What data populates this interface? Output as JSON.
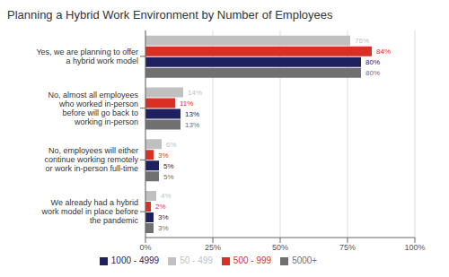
{
  "chart_data": {
    "type": "bar",
    "orientation": "horizontal",
    "title": "Planning a Hybrid Work Environment by Number of Employees",
    "categories": [
      "Yes, we are planning to offer\na hybrid work model",
      "No, almost all employees\nwho worked in-person\nbefore will go back to\nworking in-person",
      "No, employees will either\ncontinue working remotely\nor work in-person full-time",
      "We already had a hybrid\nwork model in place before\nthe pandemic"
    ],
    "series": [
      {
        "name": "50 - 499",
        "color": "#c0c0c0",
        "values": [
          76,
          14,
          6,
          4
        ],
        "value_labels": [
          "76%",
          "14%",
          "6%",
          "4%"
        ]
      },
      {
        "name": "500 - 999",
        "color": "#d93025",
        "values": [
          84,
          11,
          3,
          2
        ],
        "value_labels": [
          "84%",
          "11%",
          "3%",
          "2%"
        ]
      },
      {
        "name": "1000 - 4999",
        "color": "#1f2060",
        "values": [
          80,
          13,
          5,
          3
        ],
        "value_labels": [
          "80%",
          "13%",
          "5%",
          "3%"
        ]
      },
      {
        "name": "5000+",
        "color": "#707070",
        "values": [
          80,
          13,
          5,
          3
        ],
        "value_labels": [
          "80%",
          "13%",
          "5%",
          "3%"
        ]
      }
    ],
    "xlim": [
      0,
      100
    ],
    "xticks": [
      {
        "value": 0,
        "label": "0%"
      },
      {
        "value": 25,
        "label": "25%"
      },
      {
        "value": 50,
        "label": "50%"
      },
      {
        "value": 75,
        "label": "75%"
      },
      {
        "value": 100,
        "label": "100%"
      }
    ],
    "grid": true,
    "legend": "bottom",
    "data_labels": true
  }
}
